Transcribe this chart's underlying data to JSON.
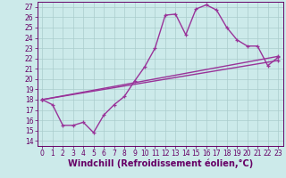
{
  "background_color": "#cceaea",
  "line_color": "#993399",
  "grid_color": "#aacccc",
  "xlabel": "Windchill (Refroidissement éolien,°C)",
  "ylabel_ticks": [
    14,
    15,
    16,
    17,
    18,
    19,
    20,
    21,
    22,
    23,
    24,
    25,
    26,
    27
  ],
  "xlabel_ticks": [
    0,
    1,
    2,
    3,
    4,
    5,
    6,
    7,
    8,
    9,
    10,
    11,
    12,
    13,
    14,
    15,
    16,
    17,
    18,
    19,
    20,
    21,
    22,
    23
  ],
  "ylim": [
    13.5,
    27.5
  ],
  "xlim": [
    -0.5,
    23.5
  ],
  "line1_x": [
    0,
    1,
    2,
    3,
    4,
    5,
    6,
    7,
    8,
    9,
    10,
    11,
    12,
    13,
    14,
    15,
    16,
    17,
    18,
    19,
    20,
    21,
    22,
    23
  ],
  "line1_y": [
    18.0,
    17.5,
    15.5,
    15.5,
    15.8,
    14.8,
    16.5,
    17.5,
    18.3,
    19.8,
    21.2,
    23.0,
    26.2,
    26.3,
    24.3,
    26.8,
    27.2,
    26.7,
    25.0,
    23.8,
    23.2,
    23.2,
    21.3,
    22.1
  ],
  "line2_x": [
    0,
    23
  ],
  "line2_y": [
    18.0,
    22.2
  ],
  "line3_x": [
    0,
    23
  ],
  "line3_y": [
    18.0,
    21.8
  ],
  "marker_size": 3.0,
  "line_width": 1.0,
  "font_color": "#660066",
  "tick_fontsize": 5.5,
  "xlabel_fontsize": 7.0
}
